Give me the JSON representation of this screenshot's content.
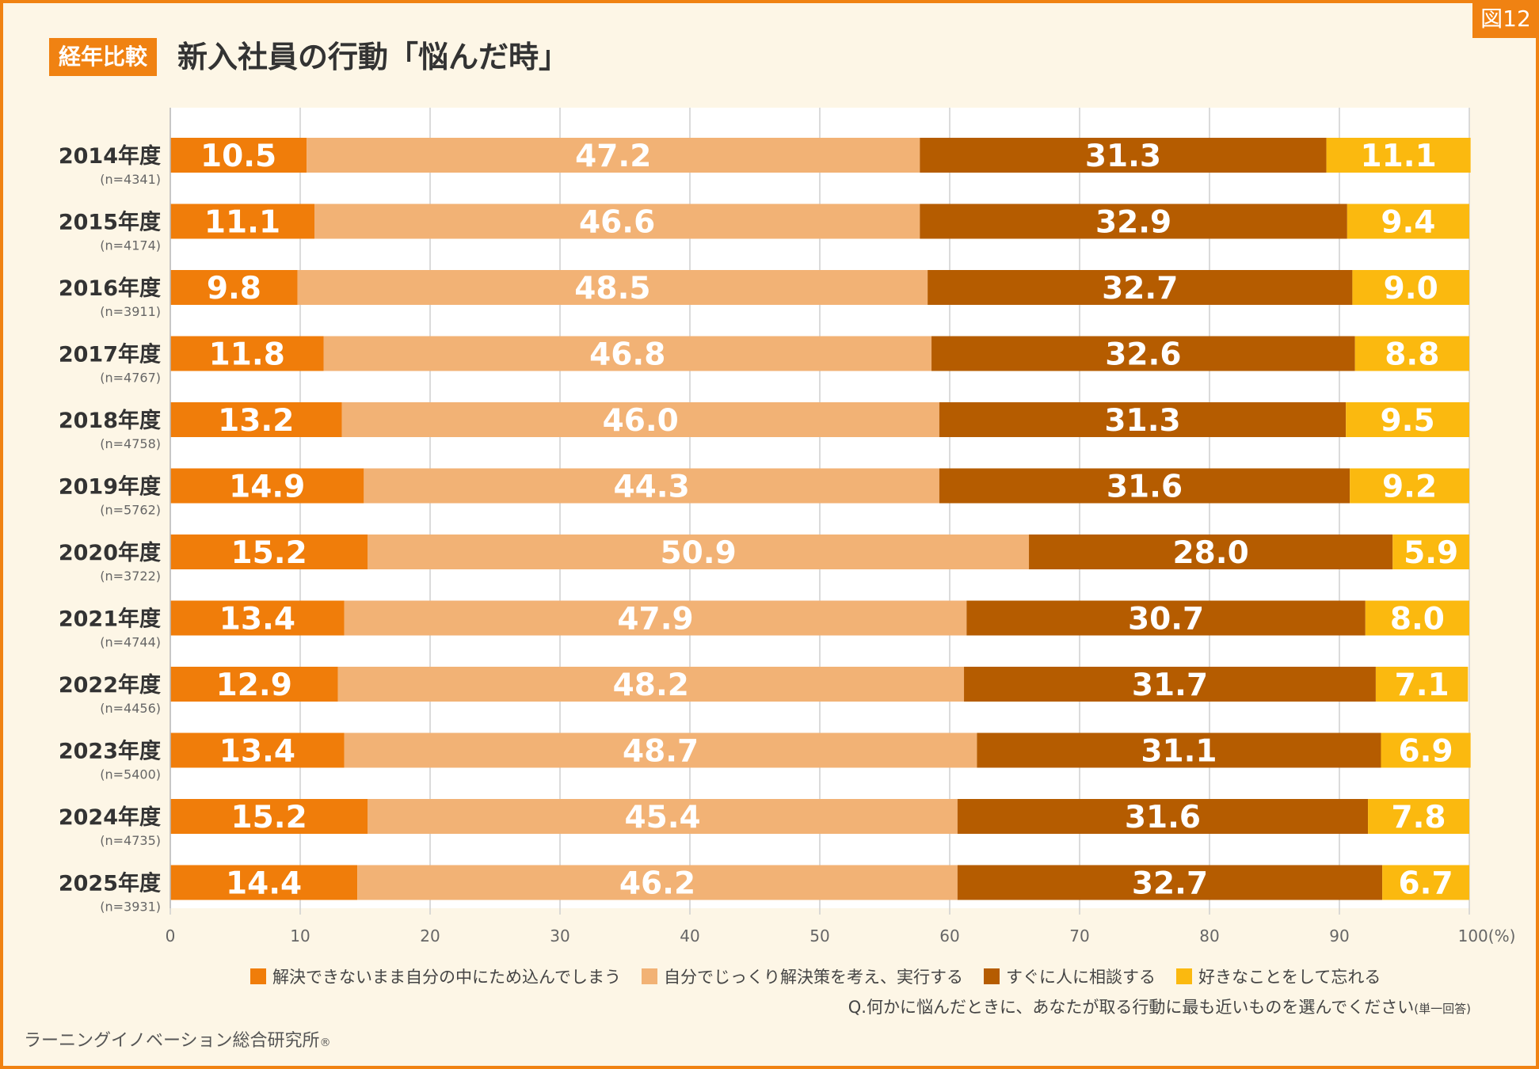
{
  "header": {
    "badge": "経年比較",
    "title": "新入社員の行動「悩んだ時」",
    "figure_tag": "図12"
  },
  "footer": {
    "question": "Q.何かに悩んだときに、あなたが取る行動に最も近いものを選んでください",
    "answer_type": "(単一回答)",
    "source": "ラーニングイノベーション総合研究所",
    "registered_mark": "®"
  },
  "colors": {
    "accent": "#f08212",
    "background": "#fdf6e6"
  },
  "chart_data": {
    "type": "bar",
    "orientation": "horizontal",
    "stacked": true,
    "title": "新入社員の行動「悩んだ時」",
    "xlabel": "(%)",
    "xlim": [
      0,
      100
    ],
    "xticks": [
      0,
      10,
      20,
      30,
      40,
      50,
      60,
      70,
      80,
      90,
      100
    ],
    "categories": [
      "2014年度",
      "2015年度",
      "2016年度",
      "2017年度",
      "2018年度",
      "2019年度",
      "2020年度",
      "2021年度",
      "2022年度",
      "2023年度",
      "2024年度",
      "2025年度"
    ],
    "sample_sizes": [
      "(n=4341)",
      "(n=4174)",
      "(n=3911)",
      "(n=4767)",
      "(n=4758)",
      "(n=5762)",
      "(n=3722)",
      "(n=4744)",
      "(n=4456)",
      "(n=5400)",
      "(n=4735)",
      "(n=3931)"
    ],
    "series": [
      {
        "name": "解決できないまま自分の中にため込んでしまう",
        "color": "#f07d0a",
        "values": [
          10.5,
          11.1,
          9.8,
          11.8,
          13.2,
          14.9,
          15.2,
          13.4,
          12.9,
          13.4,
          15.2,
          14.4
        ]
      },
      {
        "name": "自分でじっくり解決策を考え、実行する",
        "color": "#f2b275",
        "values": [
          47.2,
          46.6,
          48.5,
          46.8,
          46.0,
          44.3,
          50.9,
          47.9,
          48.2,
          48.7,
          45.4,
          46.2
        ]
      },
      {
        "name": "すぐに人に相談する",
        "color": "#b55c00",
        "values": [
          31.3,
          32.9,
          32.7,
          32.6,
          31.3,
          31.6,
          28.0,
          30.7,
          31.7,
          31.1,
          31.6,
          32.7
        ]
      },
      {
        "name": "好きなことをして忘れる",
        "color": "#fbb90f",
        "values": [
          11.1,
          9.4,
          9.0,
          8.8,
          9.5,
          9.2,
          5.9,
          8.0,
          7.1,
          6.9,
          7.8,
          6.7
        ]
      }
    ],
    "legend_position": "bottom"
  }
}
